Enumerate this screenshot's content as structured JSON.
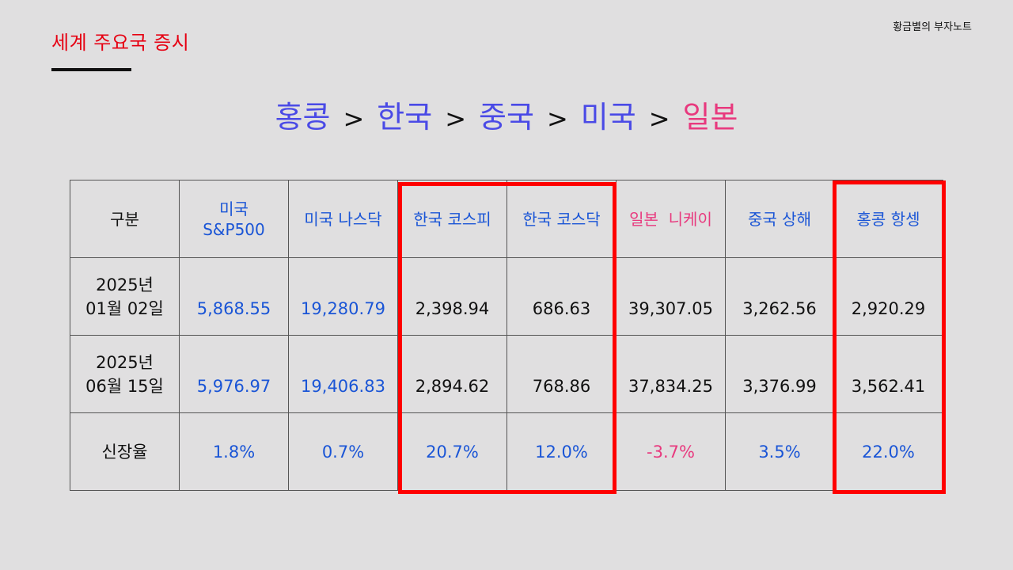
{
  "header": {
    "section_title": "세계 주요국 증시",
    "brand": "황금별의 부자노트"
  },
  "ranking": {
    "items": [
      "홍콩",
      "한국",
      "중국",
      "미국",
      "일본"
    ],
    "separator": ">"
  },
  "table": {
    "corner_label": "구분",
    "columns": [
      {
        "label_line1": "미국",
        "label_line2": "S&P500"
      },
      {
        "label": "미국 나스닥"
      },
      {
        "label": "한국 코스피"
      },
      {
        "label": "한국 코스닥"
      },
      {
        "label": "일본  니케이"
      },
      {
        "label": "중국 상해"
      },
      {
        "label": "홍콩 항셍"
      }
    ],
    "rows": [
      {
        "label_line1": "2025년",
        "label_line2": "01월 02일",
        "values": [
          "5,868.55",
          "19,280.79",
          "2,398.94",
          "686.63",
          "39,307.05",
          "3,262.56",
          "2,920.29"
        ]
      },
      {
        "label_line1": "2025년",
        "label_line2": "06월 15일",
        "values": [
          "5,976.97",
          "19,406.83",
          "2,894.62",
          "768.86",
          "37,834.25",
          "3,376.99",
          "3,562.41"
        ]
      }
    ],
    "growth": {
      "label": "신장율",
      "values": [
        "1.8%",
        "0.7%",
        "20.7%",
        "12.0%",
        "-3.7%",
        "3.5%",
        "22.0%"
      ]
    }
  },
  "colors": {
    "background": "#e0dfe0",
    "title_red": "#e60012",
    "ranking_blue": "#4a4ae6",
    "ranking_pink": "#e8397e",
    "table_blue": "#1a55d6",
    "table_pink": "#e8397e",
    "highlight_red": "#ff0000"
  }
}
